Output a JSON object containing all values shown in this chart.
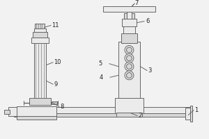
{
  "bg_color": "#f2f2f2",
  "line_color": "#666666",
  "fill_light": "#ebebeb",
  "fill_mid": "#d8d8d8",
  "fill_dark": "#c0c0c0",
  "label_color": "#222222",
  "figsize": [
    3.0,
    2.0
  ],
  "dpi": 100
}
